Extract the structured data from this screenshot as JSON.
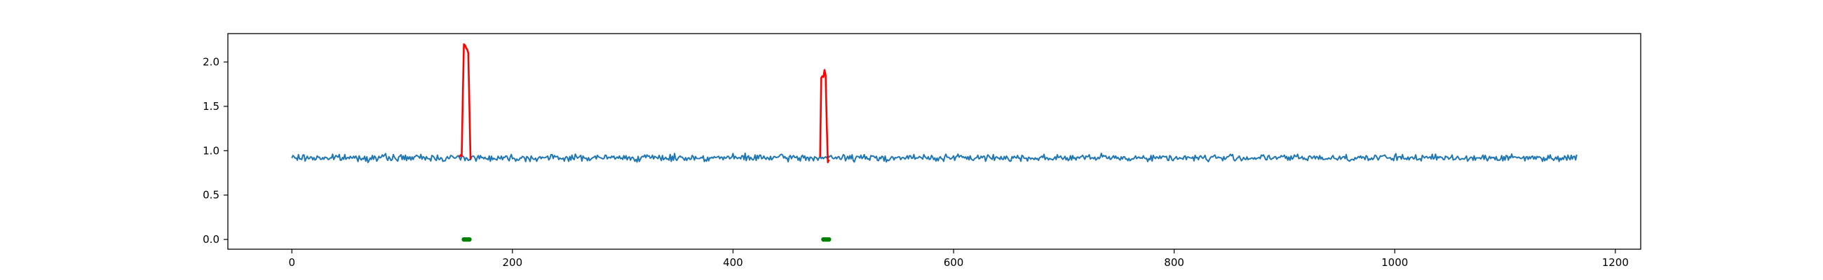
{
  "chart_data": {
    "type": "line",
    "title": "",
    "xlabel": "",
    "ylabel": "",
    "xlim": [
      -58,
      1223
    ],
    "ylim": [
      -0.11,
      2.32
    ],
    "grid": false,
    "legend": "none",
    "x_ticks": [
      0,
      200,
      400,
      600,
      800,
      1000,
      1200
    ],
    "x_tick_labels": [
      "0",
      "200",
      "400",
      "600",
      "800",
      "1000",
      "1200"
    ],
    "y_ticks": [
      0.0,
      0.5,
      1.0,
      1.5,
      2.0
    ],
    "y_tick_labels": [
      "0.0",
      "0.5",
      "1.0",
      "1.5",
      "2.0"
    ],
    "series": [
      {
        "kind": "signal",
        "color": "#1f77b4",
        "x_start": 0,
        "x_end": 1165,
        "baseline": 0.92,
        "noise_amplitude": 0.035,
        "samples_step": 1
      },
      {
        "kind": "anomaly",
        "color": "#ff0000",
        "points": [
          {
            "x": 152,
            "y": 0.93
          },
          {
            "x": 153,
            "y": 0.95
          },
          {
            "x": 154,
            "y": 0.94
          },
          {
            "x": 155,
            "y": 1.6
          },
          {
            "x": 156,
            "y": 2.2
          },
          {
            "x": 157,
            "y": 2.19
          },
          {
            "x": 158,
            "y": 2.16
          },
          {
            "x": 159,
            "y": 2.14
          },
          {
            "x": 160,
            "y": 2.1
          },
          {
            "x": 161,
            "y": 1.5
          },
          {
            "x": 162,
            "y": 0.9
          }
        ]
      },
      {
        "kind": "anomaly",
        "color": "#ff0000",
        "points": [
          {
            "x": 479,
            "y": 0.93
          },
          {
            "x": 480,
            "y": 1.82
          },
          {
            "x": 481,
            "y": 1.84
          },
          {
            "x": 482,
            "y": 1.83
          },
          {
            "x": 483,
            "y": 1.91
          },
          {
            "x": 484,
            "y": 1.85
          },
          {
            "x": 485,
            "y": 1.3
          },
          {
            "x": 486,
            "y": 0.87
          },
          {
            "x": 487,
            "y": 0.9
          }
        ]
      },
      {
        "kind": "marker",
        "color": "#008000",
        "points": [
          {
            "x": 156,
            "y": 0.0
          },
          {
            "x": 157,
            "y": 0.0
          },
          {
            "x": 158,
            "y": 0.0
          },
          {
            "x": 159,
            "y": 0.0
          },
          {
            "x": 160,
            "y": 0.0
          },
          {
            "x": 161,
            "y": 0.0
          }
        ]
      },
      {
        "kind": "marker",
        "color": "#008000",
        "points": [
          {
            "x": 482,
            "y": 0.0
          },
          {
            "x": 483,
            "y": 0.0
          },
          {
            "x": 484,
            "y": 0.0
          },
          {
            "x": 485,
            "y": 0.0
          },
          {
            "x": 486,
            "y": 0.0
          },
          {
            "x": 487,
            "y": 0.0
          }
        ]
      }
    ]
  }
}
